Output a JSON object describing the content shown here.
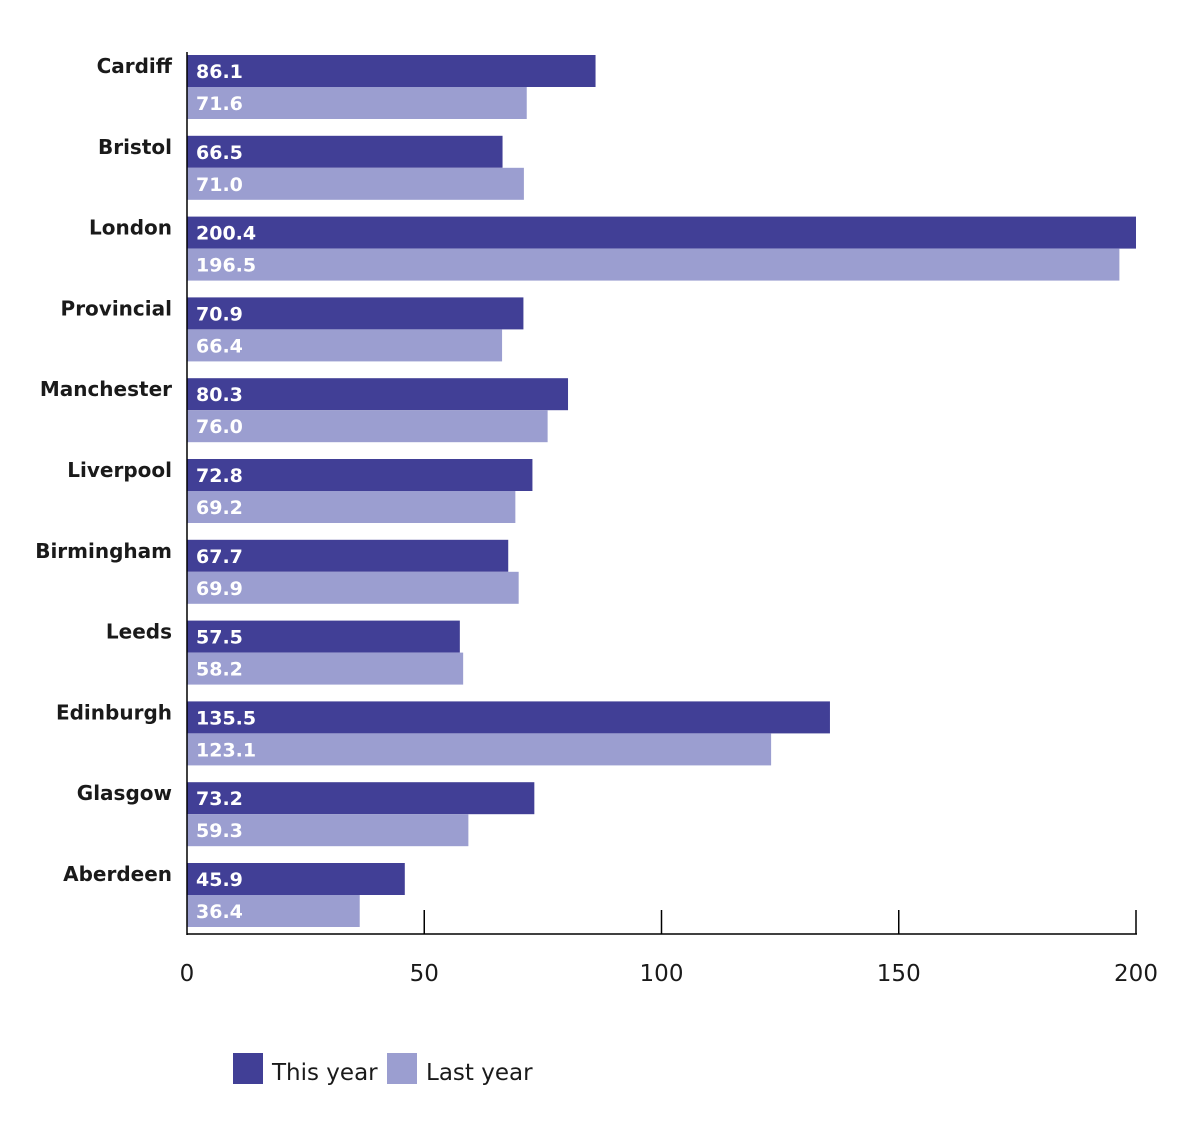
{
  "chart_data": {
    "type": "bar",
    "orientation": "horizontal",
    "categories": [
      "Cardiff",
      "Bristol",
      "London",
      "Provincial",
      "Manchester",
      "Liverpool",
      "Birmingham",
      "Leeds",
      "Edinburgh",
      "Glasgow",
      "Aberdeen"
    ],
    "series": [
      {
        "name": "This year",
        "color": "#413f96",
        "values": [
          86.1,
          66.5,
          200.4,
          70.9,
          80.3,
          72.8,
          67.7,
          57.5,
          135.5,
          73.2,
          45.9
        ],
        "value_labels": [
          "86.1",
          "66.5",
          "200.4",
          "70.9",
          "80.3",
          "72.8",
          "67.7",
          "57.5",
          "135.5",
          "73.2",
          "45.9"
        ]
      },
      {
        "name": "Last year",
        "color": "#9b9ed0",
        "values": [
          71.6,
          71.0,
          196.5,
          66.4,
          76.0,
          69.2,
          69.9,
          58.2,
          123.1,
          59.3,
          36.4
        ],
        "value_labels": [
          "71.6",
          "71.0",
          "196.5",
          "66.4",
          "76.0",
          "69.2",
          "69.9",
          "58.2",
          "123.1",
          "59.3",
          "36.4"
        ]
      }
    ],
    "xlim": [
      0,
      200
    ],
    "xticks": [
      0,
      50,
      100,
      150,
      200
    ],
    "xtick_labels": [
      "0",
      "50",
      "100",
      "150",
      "200"
    ],
    "title": "",
    "xlabel": "",
    "ylabel": "",
    "grid": false,
    "legend_position": "bottom-left"
  }
}
